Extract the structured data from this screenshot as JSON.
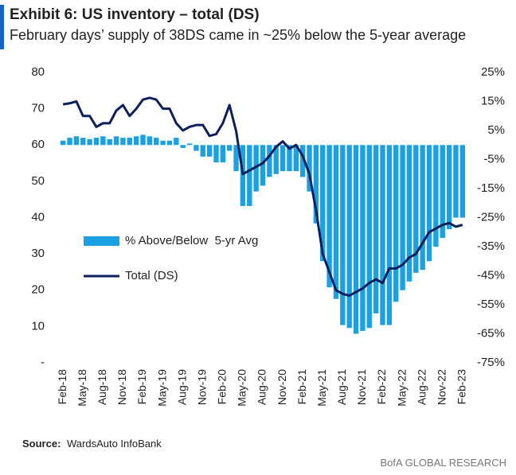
{
  "chart_data": {
    "type": "combo",
    "title": "Exhibit 6: US inventory – total (DS)",
    "subtitle": "February days’ supply of 38DS came in ~25% below the 5-year average",
    "source_label": "Source:",
    "source": "WardsAuto InfoBank",
    "footer": "BofA GLOBAL RESEARCH",
    "categories": [
      "Feb-18",
      null,
      null,
      "May-18",
      null,
      null,
      "Aug-18",
      null,
      null,
      "Nov-18",
      null,
      null,
      "Feb-19",
      null,
      null,
      "May-19",
      null,
      null,
      "Aug-19",
      null,
      null,
      "Nov-19",
      null,
      null,
      "Feb-20",
      null,
      null,
      "May-20",
      null,
      null,
      "Aug-20",
      null,
      null,
      "Nov-20",
      null,
      null,
      "Feb-21",
      null,
      null,
      "May-21",
      null,
      null,
      "Aug-21",
      null,
      null,
      "Nov-21",
      null,
      null,
      "Feb-22",
      null,
      null,
      "May-22",
      null,
      null,
      "Aug-22",
      null,
      null,
      "Nov-22",
      null,
      null,
      "Feb-23"
    ],
    "series": [
      {
        "name": "% Above/Below  5-yr Avg",
        "type": "bar",
        "axis": "y2",
        "color": "#1ba1e2",
        "values": [
          1.5,
          2.5,
          3,
          2.5,
          2,
          2.5,
          3,
          2,
          3,
          2.5,
          2.5,
          3,
          3.5,
          3,
          2.5,
          1.5,
          1.5,
          2.5,
          -1,
          0.5,
          -2,
          -4,
          -4,
          -6,
          -6,
          -2,
          -9,
          -21,
          -21,
          -16,
          -14,
          -11,
          -10,
          -9,
          -9,
          -9,
          -11,
          -16,
          -27,
          -40,
          -49,
          -53,
          -62,
          -63,
          -65,
          -64,
          -63,
          -58,
          -62,
          -62,
          -54,
          -50,
          -47,
          -44,
          -43,
          -40,
          -35,
          -32,
          -29,
          -25,
          -25
        ]
      },
      {
        "name": "Total (DS)",
        "type": "line",
        "color": "#0d1f5c",
        "values": [
          71.2,
          71.5,
          72,
          68,
          68,
          65,
          66,
          66,
          69.5,
          71,
          68,
          70,
          72.5,
          73,
          72.5,
          70,
          70,
          66,
          64,
          65,
          65.5,
          65.5,
          62.5,
          63,
          66,
          71,
          63.8,
          52,
          53,
          54,
          55,
          57,
          59.5,
          61,
          59,
          60,
          57,
          52,
          42,
          30,
          25,
          20,
          19,
          18.5,
          19.5,
          20.5,
          22,
          23,
          22,
          26,
          26,
          27,
          29,
          30,
          33,
          36,
          37,
          38,
          38.5,
          37.5,
          38
        ]
      }
    ],
    "ylim": [
      0,
      80
    ],
    "yticks": [
      {
        "value": 0,
        "label": "-"
      },
      10,
      20,
      30,
      40,
      50,
      60,
      70,
      80
    ],
    "y2lim": [
      -75,
      25
    ],
    "y2ticks": [
      {
        "value": -75,
        "label": "-75%"
      },
      {
        "value": -65,
        "label": "-65%"
      },
      {
        "value": -55,
        "label": "-55%"
      },
      {
        "value": -45,
        "label": "-45%"
      },
      {
        "value": -35,
        "label": "-35%"
      },
      {
        "value": -25,
        "label": "-25%"
      },
      {
        "value": -15,
        "label": "-15%"
      },
      {
        "value": -5,
        "label": "-5%"
      },
      {
        "value": 5,
        "label": "5%"
      },
      {
        "value": 15,
        "label": "15%"
      },
      {
        "value": 25,
        "label": "25%"
      }
    ],
    "grid": false
  }
}
